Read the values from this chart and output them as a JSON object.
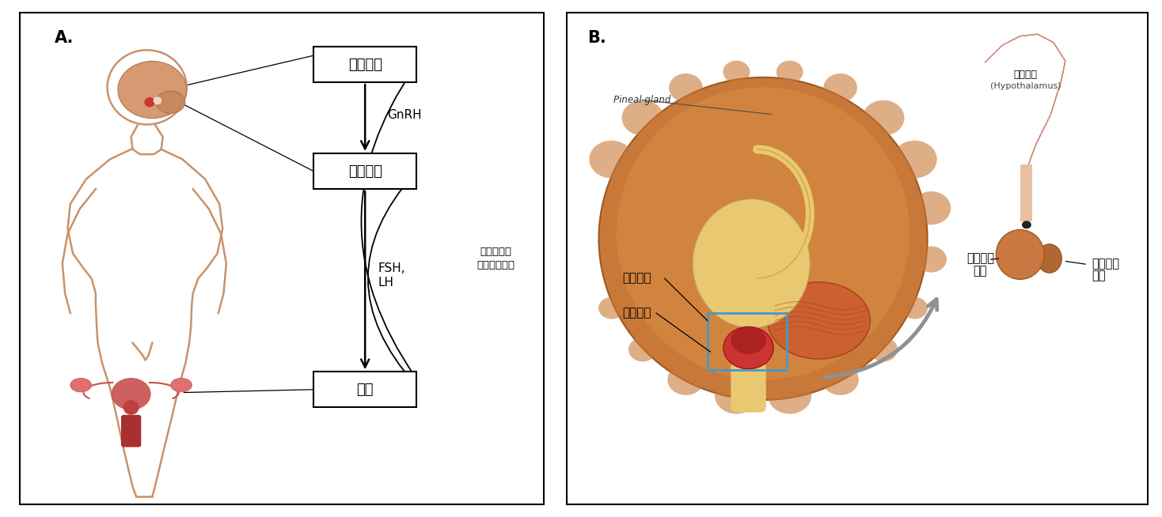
{
  "panel_A_label": "A.",
  "panel_B_label": "B.",
  "box1_text": "시상하부",
  "box2_text": "뇌하수체",
  "box3_text": "난소",
  "arrow1_label": "GnRH",
  "arrow2_label": "FSH,\nLH",
  "feedback_label": "에스트로겐\n프로게스테론",
  "pineal_gland": "Pineal gland",
  "hypothalamus_kr": "시상하부",
  "pituitary_kr": "뇌하수체",
  "hypothalamus_en_line1": "시상하부",
  "hypothalamus_en_line2": "(Hypothalamus)",
  "anterior_pituitary_line1": "뇌하수체",
  "anterior_pituitary_line2": "전엽",
  "posterior_pituitary_line1": "뇌하수체",
  "posterior_pituitary_line2": "후엽",
  "bg_color": "#ffffff",
  "box_color": "#ffffff",
  "box_edge_color": "#000000",
  "text_color": "#000000",
  "body_color": "#c8926a",
  "figure_width": 14.68,
  "figure_height": 6.54
}
